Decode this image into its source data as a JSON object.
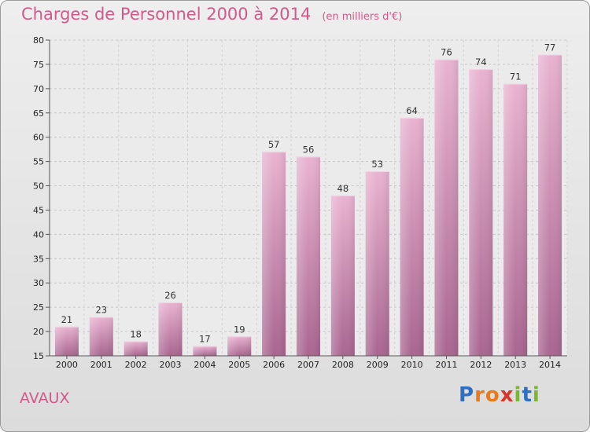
{
  "header": {
    "title": "Charges de Personnel 2000 à 2014",
    "subtitle": "(en milliers d'€)"
  },
  "commune": "AVAUX",
  "logo": {
    "text": "Proxiti",
    "letters": [
      "P",
      "r",
      "o",
      "x",
      "i",
      "t",
      "i"
    ],
    "colors": [
      "#2f6fc2",
      "#e87a1e",
      "#e87a1e",
      "#d9352a",
      "#7ab62e",
      "#2f6fc2",
      "#7ab62e"
    ]
  },
  "colors": {
    "accent": "#d05a8a",
    "bar_top": "#e8b0cf",
    "bar_bottom": "#a96590"
  },
  "chart_data": {
    "type": "bar",
    "categories": [
      "2000",
      "2001",
      "2002",
      "2003",
      "2004",
      "2005",
      "2006",
      "2007",
      "2008",
      "2009",
      "2010",
      "2011",
      "2012",
      "2013",
      "2014"
    ],
    "values": [
      21,
      23,
      18,
      26,
      17,
      19,
      57,
      56,
      48,
      53,
      64,
      76,
      74,
      71,
      77
    ],
    "ylim": [
      15,
      80
    ],
    "yticks": [
      15,
      20,
      25,
      30,
      35,
      40,
      45,
      50,
      55,
      60,
      65,
      70,
      75,
      80
    ],
    "grid": true,
    "data_labels": true
  }
}
